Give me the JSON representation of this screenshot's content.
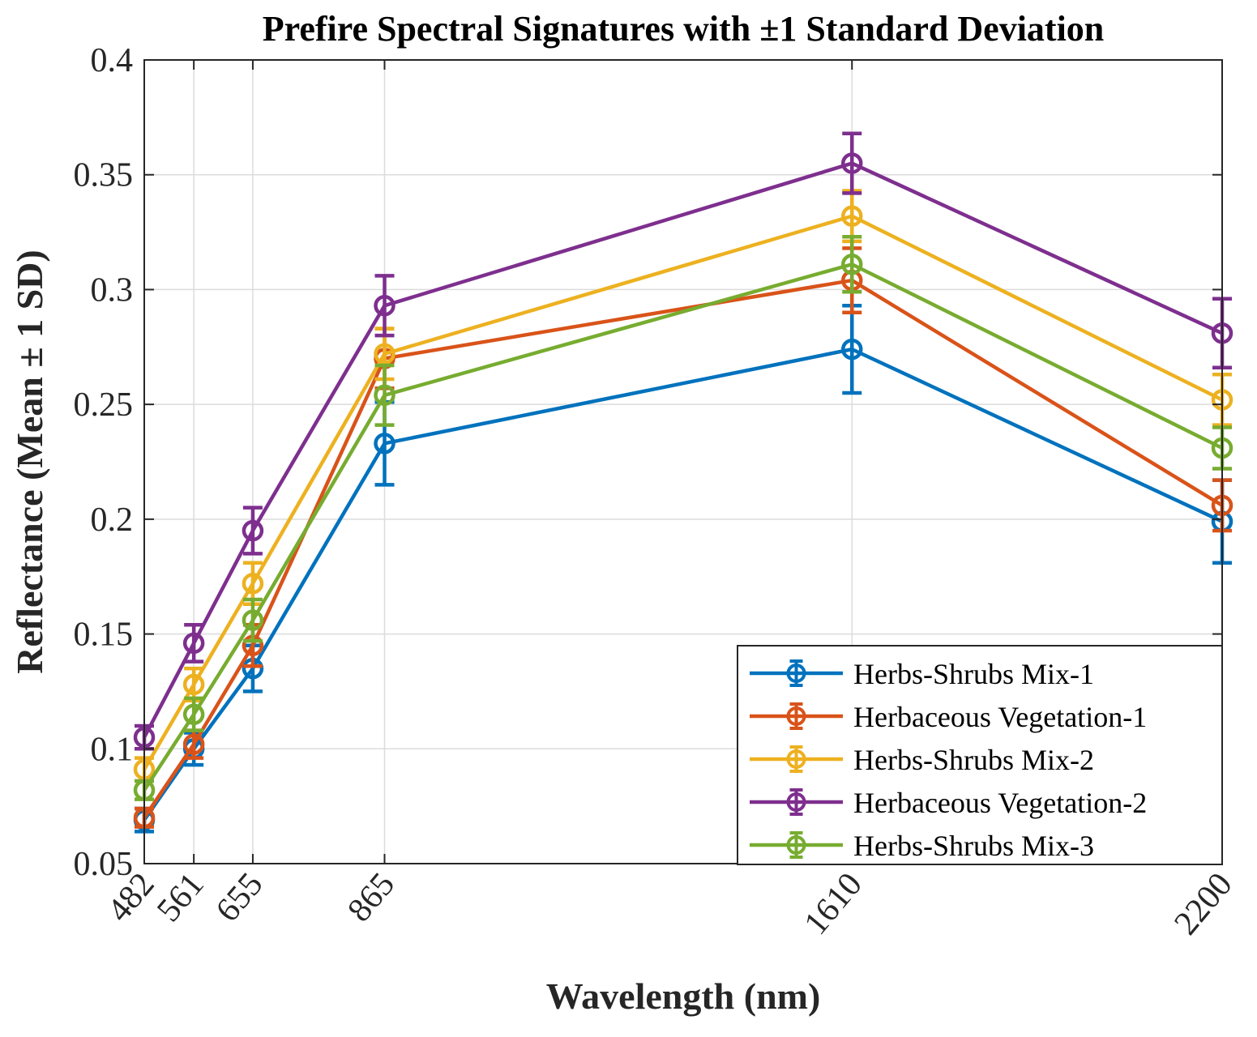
{
  "chart_data": {
    "type": "line",
    "title": "Prefire Spectral Signatures with ±1 Standard Deviation",
    "xlabel": "Wavelength (nm)",
    "ylabel": "Reflectance (Mean ± 1 SD)",
    "x": [
      482,
      561,
      655,
      865,
      1610,
      2200
    ],
    "x_tick_labels": [
      "482",
      "561",
      "655",
      "865",
      "1610",
      "2200"
    ],
    "xlim": [
      482,
      2200
    ],
    "ylim": [
      0.05,
      0.4
    ],
    "y_ticks": [
      0.05,
      0.1,
      0.15,
      0.2,
      0.25,
      0.3,
      0.35,
      0.4
    ],
    "y_tick_labels": [
      "0.05",
      "0.1",
      "0.15",
      "0.2",
      "0.25",
      "0.3",
      "0.35",
      "0.4"
    ],
    "grid": true,
    "legend_position": "bottom-right",
    "series": [
      {
        "name": "Herbs-Shrubs Mix-1",
        "color": "#0072BD",
        "values": [
          0.069,
          0.1,
          0.135,
          0.233,
          0.274,
          0.199
        ],
        "sd": [
          0.005,
          0.007,
          0.01,
          0.018,
          0.019,
          0.018
        ]
      },
      {
        "name": "Herbaceous Vegetation-1",
        "color": "#D95319",
        "values": [
          0.07,
          0.102,
          0.145,
          0.27,
          0.304,
          0.206
        ],
        "sd": [
          0.004,
          0.006,
          0.009,
          0.013,
          0.014,
          0.011
        ]
      },
      {
        "name": "Herbs-Shrubs Mix-2",
        "color": "#EDB120",
        "values": [
          0.091,
          0.128,
          0.172,
          0.272,
          0.332,
          0.252
        ],
        "sd": [
          0.005,
          0.007,
          0.009,
          0.011,
          0.011,
          0.011
        ]
      },
      {
        "name": "Herbaceous Vegetation-2",
        "color": "#7E2F8E",
        "values": [
          0.105,
          0.146,
          0.195,
          0.293,
          0.355,
          0.281
        ],
        "sd": [
          0.005,
          0.008,
          0.01,
          0.013,
          0.013,
          0.015
        ]
      },
      {
        "name": "Herbs-Shrubs Mix-3",
        "color": "#77AC30",
        "values": [
          0.082,
          0.115,
          0.156,
          0.254,
          0.311,
          0.231
        ],
        "sd": [
          0.004,
          0.007,
          0.009,
          0.013,
          0.012,
          0.009
        ]
      }
    ]
  }
}
